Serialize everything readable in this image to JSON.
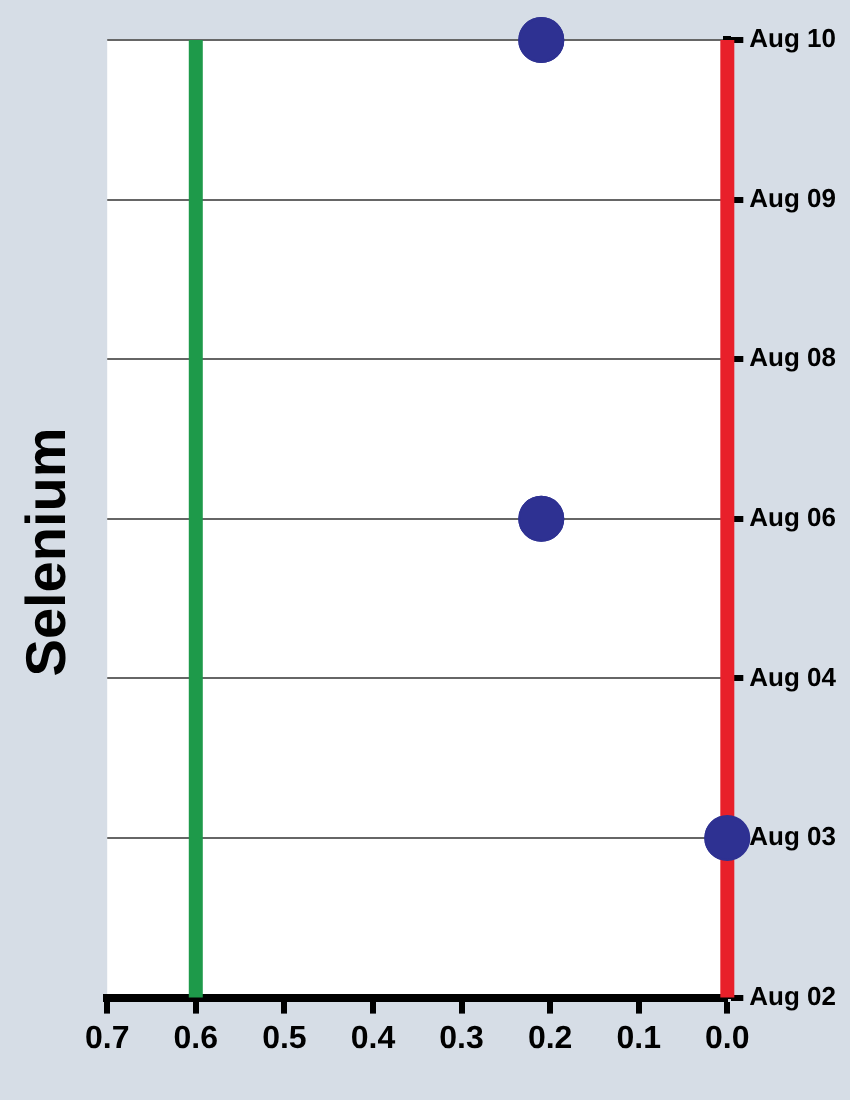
{
  "chart_data": {
    "type": "scatter",
    "title": "Selenium",
    "orientation": "horizontal",
    "categories": [
      "Aug 10",
      "Aug 09",
      "Aug 08",
      "Aug 06",
      "Aug 04",
      "Aug 03",
      "Aug 02"
    ],
    "values": [
      0.21,
      null,
      null,
      0.21,
      null,
      0,
      null
    ],
    "color": "#2e3192",
    "xlim": [
      0.7,
      0
    ],
    "xticks": [
      0.7,
      0.6,
      0.5,
      0.4,
      0.3,
      0.2,
      0.1,
      {
        "value": 0,
        "label": "0.0"
      }
    ],
    "grid": "y",
    "marker": "circle",
    "ref_lines": [
      {
        "axis": "x",
        "value": 0,
        "color": "#e8202a"
      },
      {
        "axis": "x",
        "value": 0.6,
        "color": "#1e9a4a"
      }
    ]
  }
}
